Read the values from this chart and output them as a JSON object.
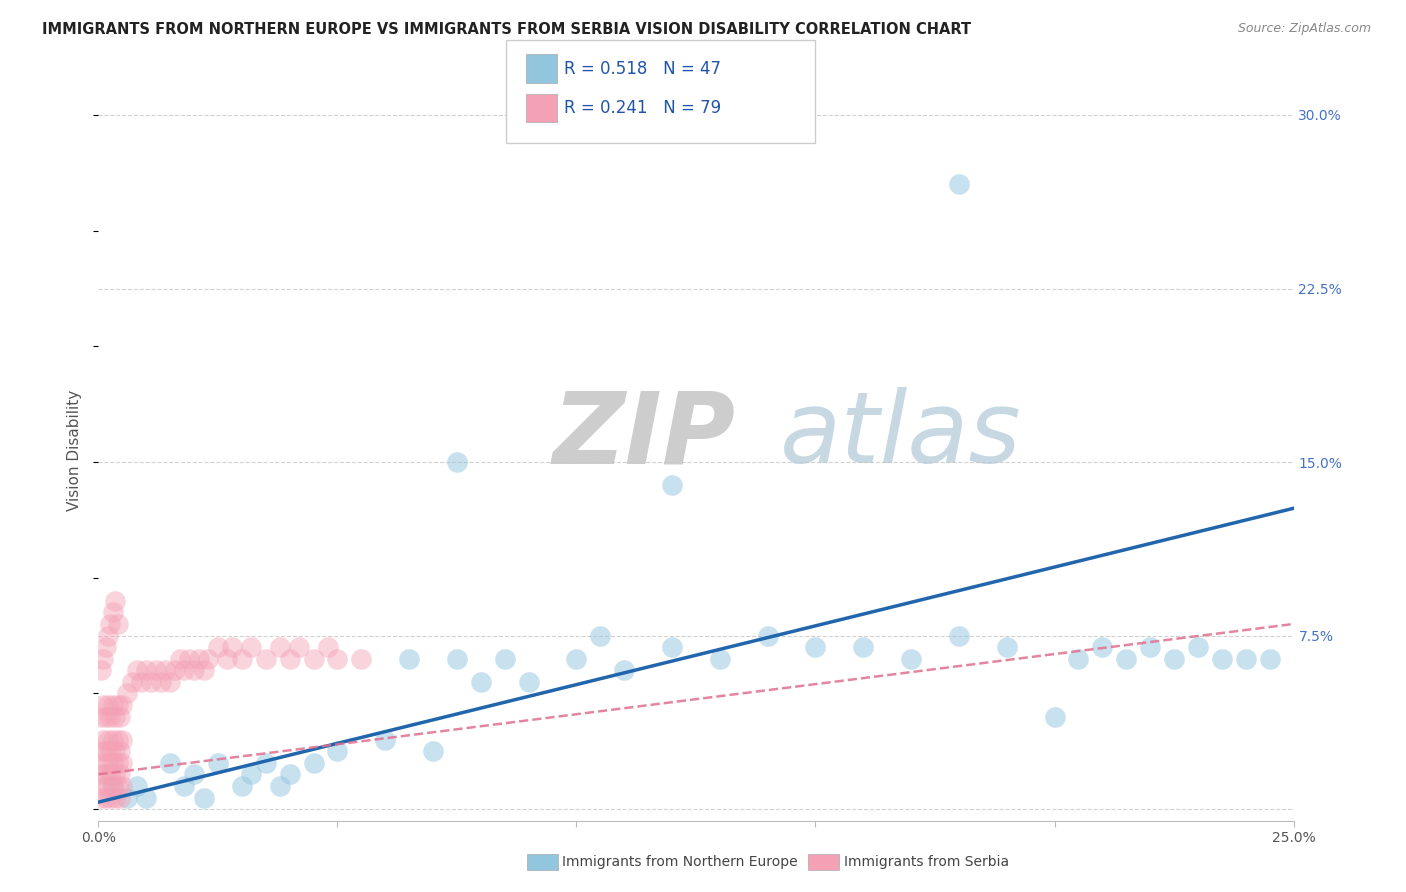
{
  "title": "IMMIGRANTS FROM NORTHERN EUROPE VS IMMIGRANTS FROM SERBIA VISION DISABILITY CORRELATION CHART",
  "source": "Source: ZipAtlas.com",
  "ylabel": "Vision Disability",
  "xlim": [
    0.0,
    0.25
  ],
  "ylim": [
    -0.005,
    0.315
  ],
  "yticks_right": [
    0.0,
    0.075,
    0.15,
    0.225,
    0.3
  ],
  "ytick_labels_right": [
    "",
    "7.5%",
    "15.0%",
    "22.5%",
    "30.0%"
  ],
  "R_blue": "0.518",
  "N_blue": "47",
  "R_pink": "0.241",
  "N_pink": "79",
  "color_blue": "#92c5de",
  "color_pink": "#f4a0b5",
  "line_color_blue": "#2166ac",
  "line_color_pink": "#e07090",
  "legend_label_blue": "Immigrants from Northern Europe",
  "legend_label_pink": "Immigrants from Serbia",
  "blue_x": [
    0.003,
    0.006,
    0.008,
    0.01,
    0.015,
    0.018,
    0.02,
    0.022,
    0.025,
    0.03,
    0.032,
    0.035,
    0.038,
    0.04,
    0.045,
    0.05,
    0.06,
    0.065,
    0.07,
    0.075,
    0.08,
    0.085,
    0.09,
    0.1,
    0.105,
    0.11,
    0.12,
    0.13,
    0.14,
    0.15,
    0.16,
    0.17,
    0.18,
    0.19,
    0.2,
    0.205,
    0.21,
    0.215,
    0.22,
    0.225,
    0.23,
    0.235,
    0.24,
    0.245,
    0.12,
    0.18,
    0.075
  ],
  "blue_y": [
    0.01,
    0.005,
    0.01,
    0.005,
    0.02,
    0.01,
    0.015,
    0.005,
    0.02,
    0.01,
    0.015,
    0.02,
    0.01,
    0.015,
    0.02,
    0.025,
    0.03,
    0.065,
    0.025,
    0.065,
    0.055,
    0.065,
    0.055,
    0.065,
    0.075,
    0.06,
    0.07,
    0.065,
    0.075,
    0.07,
    0.07,
    0.065,
    0.075,
    0.07,
    0.04,
    0.065,
    0.07,
    0.065,
    0.07,
    0.065,
    0.07,
    0.065,
    0.065,
    0.065,
    0.14,
    0.27,
    0.15
  ],
  "pink_x": [
    0.0005,
    0.001,
    0.0015,
    0.002,
    0.0025,
    0.003,
    0.0035,
    0.004,
    0.0045,
    0.005,
    0.0005,
    0.001,
    0.0015,
    0.002,
    0.0025,
    0.003,
    0.0035,
    0.004,
    0.0045,
    0.005,
    0.0005,
    0.001,
    0.0015,
    0.002,
    0.0025,
    0.003,
    0.0035,
    0.004,
    0.0045,
    0.005,
    0.0005,
    0.001,
    0.0015,
    0.002,
    0.0025,
    0.003,
    0.0035,
    0.004,
    0.0045,
    0.005,
    0.006,
    0.007,
    0.008,
    0.009,
    0.01,
    0.011,
    0.012,
    0.013,
    0.014,
    0.015,
    0.016,
    0.017,
    0.018,
    0.019,
    0.02,
    0.021,
    0.022,
    0.023,
    0.025,
    0.027,
    0.028,
    0.03,
    0.032,
    0.035,
    0.038,
    0.04,
    0.042,
    0.045,
    0.048,
    0.05,
    0.0005,
    0.001,
    0.0015,
    0.002,
    0.0025,
    0.003,
    0.0035,
    0.004,
    0.055
  ],
  "pink_y": [
    0.005,
    0.01,
    0.005,
    0.01,
    0.005,
    0.01,
    0.005,
    0.01,
    0.005,
    0.01,
    0.015,
    0.02,
    0.015,
    0.02,
    0.015,
    0.02,
    0.015,
    0.02,
    0.015,
    0.02,
    0.025,
    0.03,
    0.025,
    0.03,
    0.025,
    0.03,
    0.025,
    0.03,
    0.025,
    0.03,
    0.04,
    0.045,
    0.04,
    0.045,
    0.04,
    0.045,
    0.04,
    0.045,
    0.04,
    0.045,
    0.05,
    0.055,
    0.06,
    0.055,
    0.06,
    0.055,
    0.06,
    0.055,
    0.06,
    0.055,
    0.06,
    0.065,
    0.06,
    0.065,
    0.06,
    0.065,
    0.06,
    0.065,
    0.07,
    0.065,
    0.07,
    0.065,
    0.07,
    0.065,
    0.07,
    0.065,
    0.07,
    0.065,
    0.07,
    0.065,
    0.06,
    0.065,
    0.07,
    0.075,
    0.08,
    0.085,
    0.09,
    0.08,
    0.065
  ],
  "blue_line_x": [
    0.0,
    0.25
  ],
  "blue_line_y": [
    0.003,
    0.13
  ],
  "pink_line_x": [
    0.0,
    0.25
  ],
  "pink_line_y": [
    0.015,
    0.08
  ]
}
